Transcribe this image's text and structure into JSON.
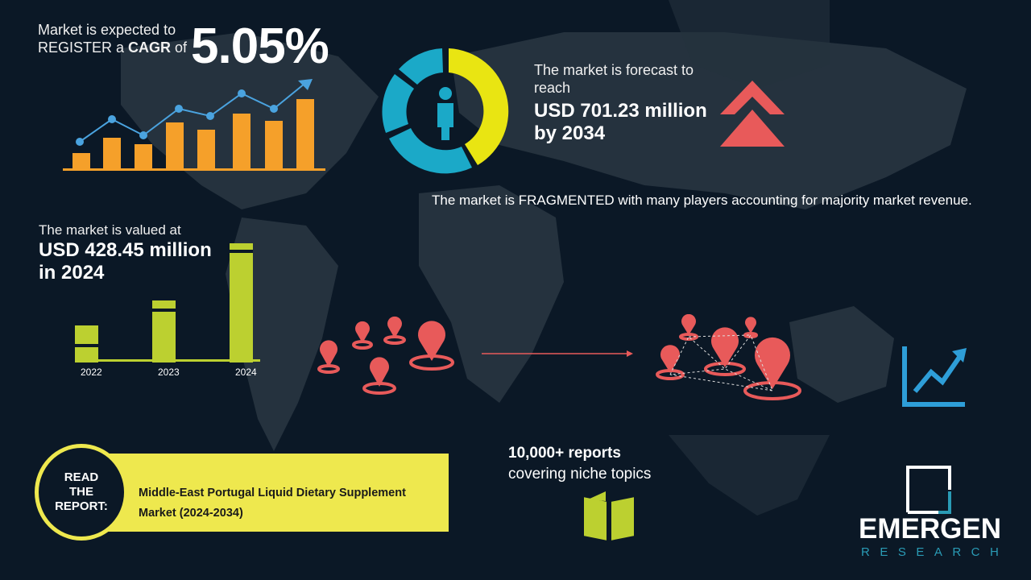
{
  "cagr": {
    "line1": "Market is expected to",
    "line2_prefix": "REGISTER a ",
    "line2_bold": "CAGR",
    "line2_suffix": " of",
    "value": "5.05%"
  },
  "forecast": {
    "line1": "The market is forecast to",
    "line2": "reach",
    "value": "USD 701.23 million",
    "year": "by 2034"
  },
  "fragmented": {
    "text": "The market is FRAGMENTED with many players accounting for majority market revenue."
  },
  "valued": {
    "line1": "The market is valued at",
    "value": "USD 428.45 million",
    "year": "in 2024"
  },
  "value_bars": {
    "labels": [
      "2022",
      "2023",
      "2024"
    ]
  },
  "reports": {
    "line1": "10,000+ reports",
    "line2": "covering niche topics"
  },
  "read_report": {
    "label_lines": [
      "READ",
      "THE",
      "REPORT:"
    ],
    "title": "Middle-East Portugal Liquid Dietary Supplement Market (2024-2034)"
  },
  "logo": {
    "word": "EMERGEN",
    "sub": "RESEARCH"
  },
  "colors": {
    "background": "#0b1826",
    "map": "#25323e",
    "orange": "#f5a02a",
    "blue": "#4aa3df",
    "yellow": "#e9e512",
    "cyan": "#1ba9c8",
    "red": "#e85a5a",
    "green": "#bcd030",
    "report_bar": "#eee84e"
  }
}
